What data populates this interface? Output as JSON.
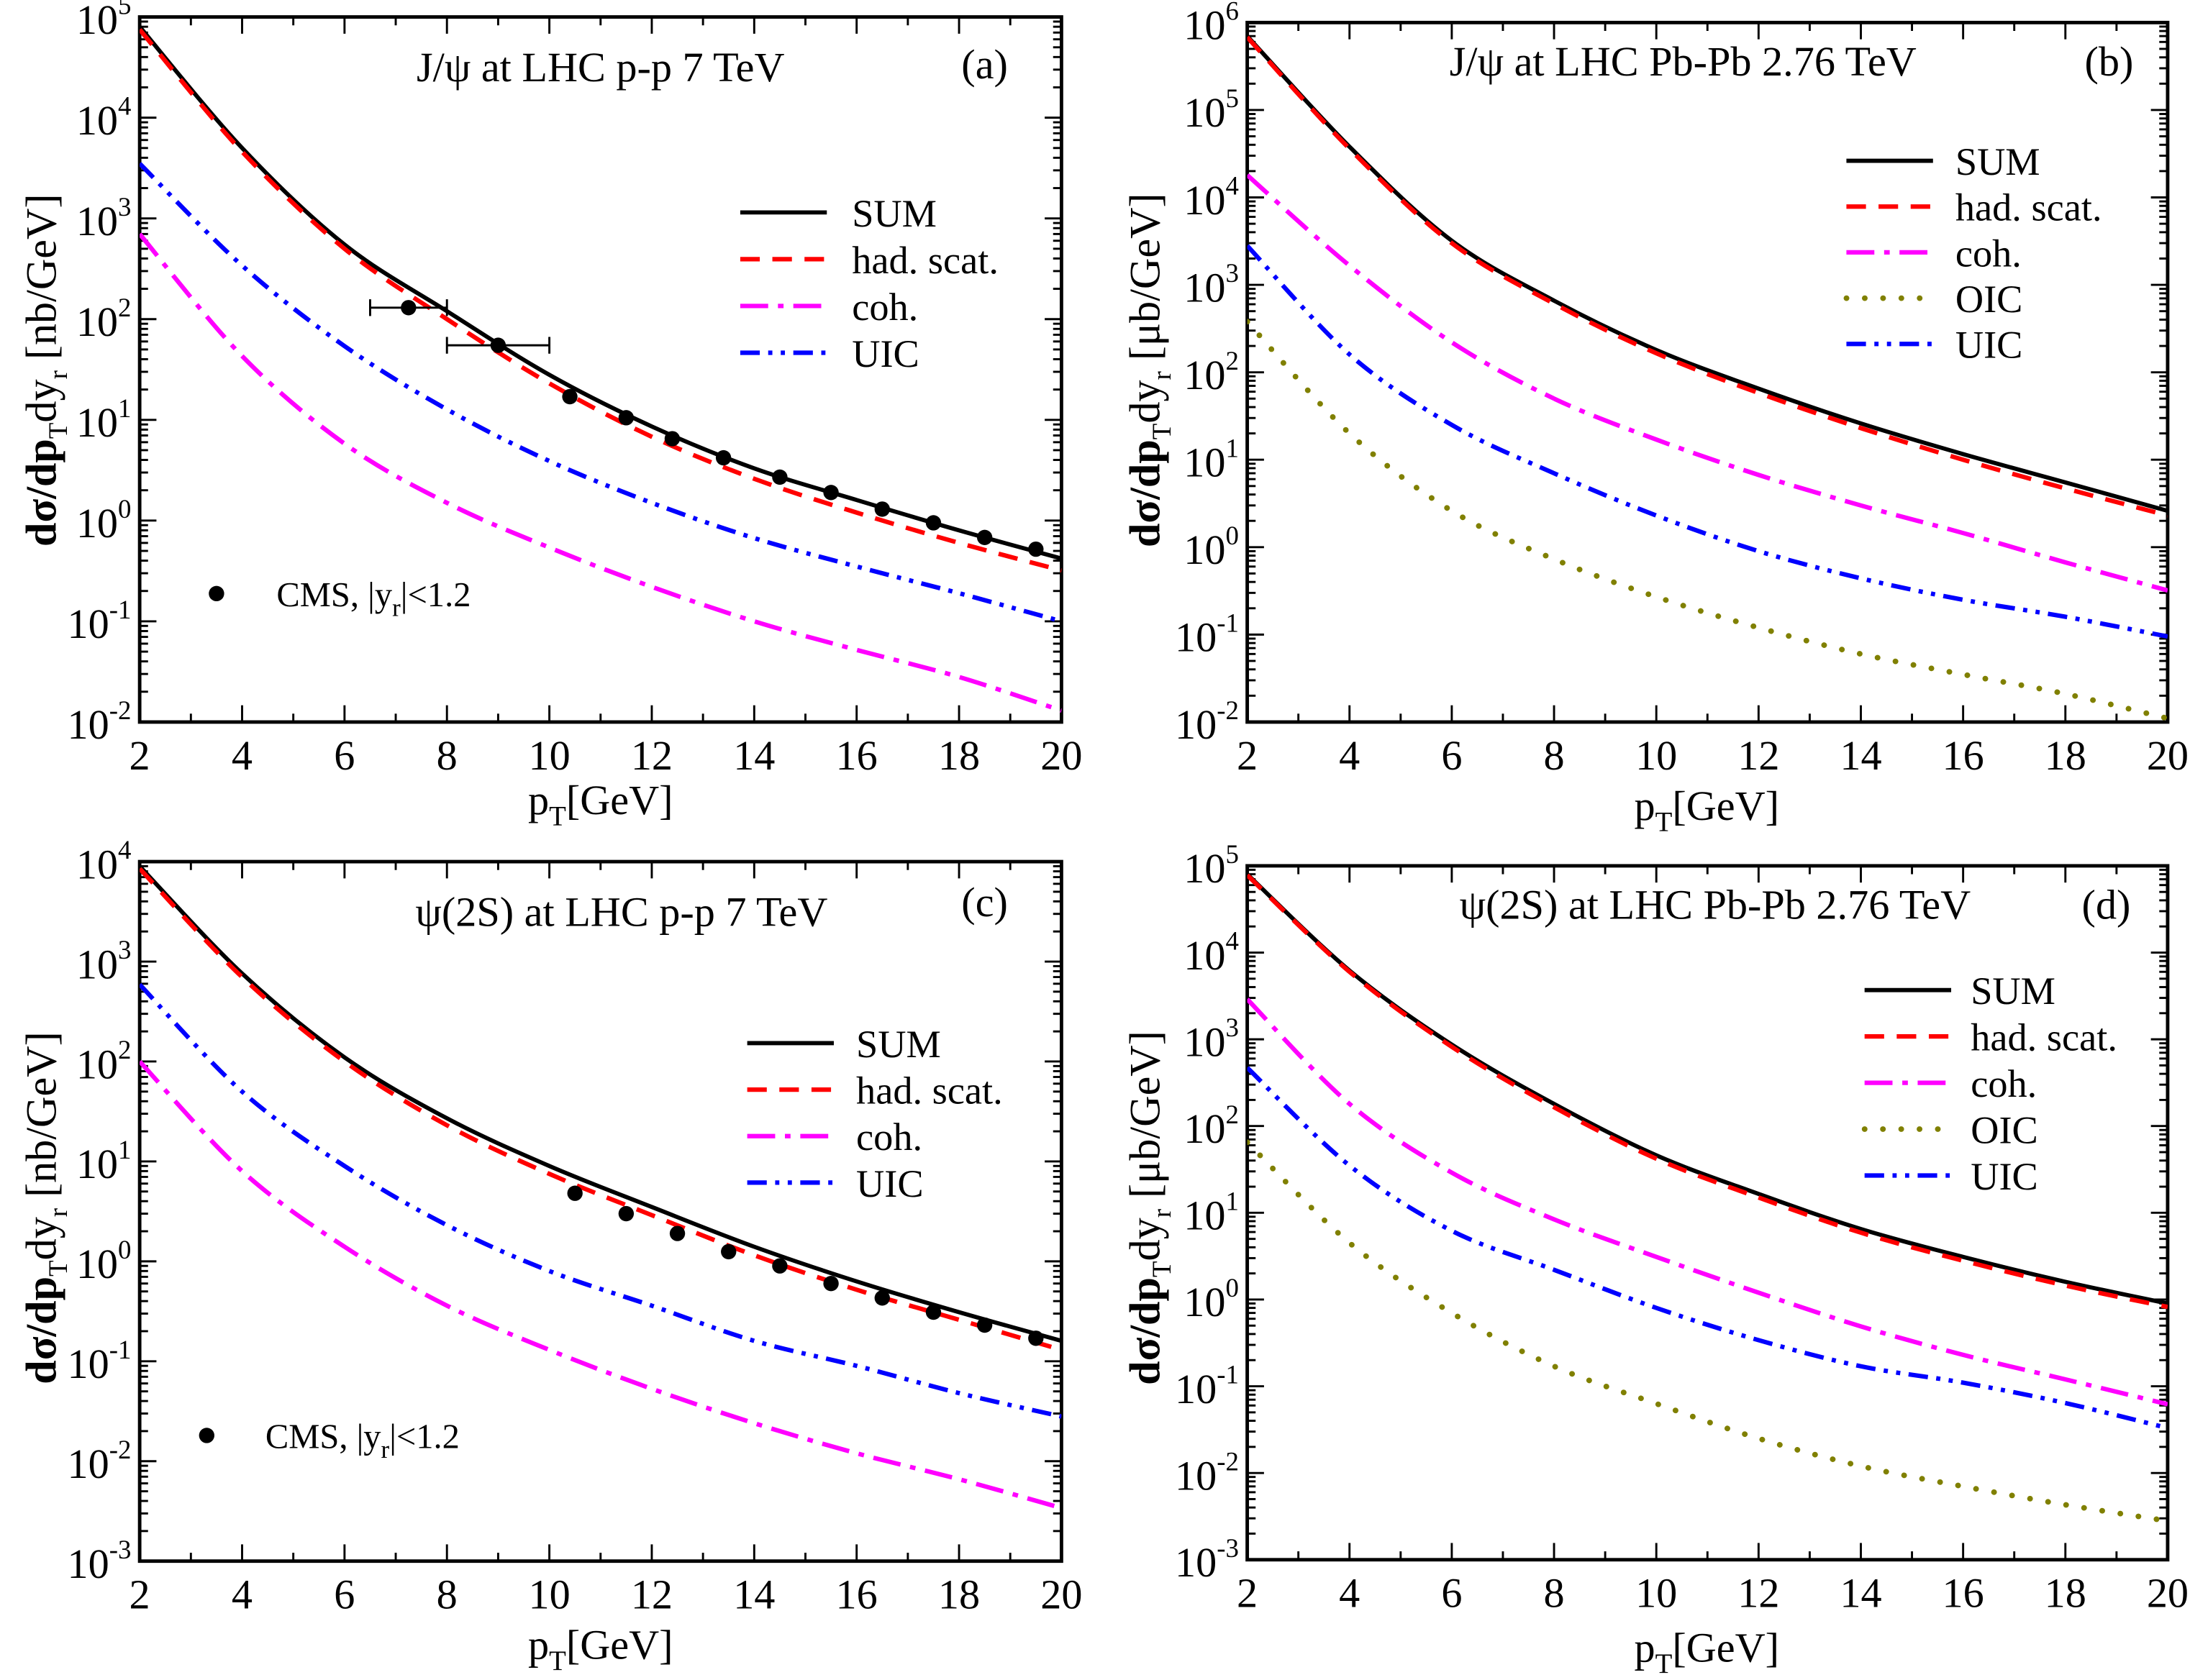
{
  "chart_data": [
    {
      "type": "line",
      "panel": "(a)",
      "title": "J/ψ at LHC p-p 7 TeV",
      "xlabel": {
        "main": "p",
        "sub": "T",
        "unit": "[GeV]"
      },
      "ylabel": {
        "pre": "dσ/dp",
        "sub1": "T",
        "mid": "dy",
        "sub2": "r",
        "unit": "[nb/GeV]"
      },
      "xlim": [
        2,
        20
      ],
      "ylim": [
        0.01,
        100000.0
      ],
      "yscale": "log",
      "xticks": [
        2,
        4,
        6,
        8,
        10,
        12,
        14,
        16,
        18,
        20
      ],
      "yticks_exp": [
        -2,
        -1,
        0,
        1,
        2,
        3,
        4,
        5
      ],
      "legend_placement": "right",
      "x": [
        2,
        4,
        6,
        8,
        10,
        12,
        14,
        16,
        18,
        20
      ],
      "series": [
        {
          "name": "SUM",
          "color": "#000000",
          "style": "solid",
          "values": [
            80000,
            5000,
            550,
            120,
            28,
            8.6,
            3.3,
            1.6,
            0.8,
            0.42
          ]
        },
        {
          "name": "had. scat.",
          "color": "#ff0000",
          "style": "dashed",
          "values": [
            75000,
            4600,
            500,
            100,
            23,
            6.8,
            2.6,
            1.2,
            0.6,
            0.32
          ]
        },
        {
          "name": "coh.",
          "color": "#ff00ff",
          "style": "dash-dot",
          "values": [
            700,
            43,
            5.8,
            1.5,
            0.54,
            0.22,
            0.1,
            0.052,
            0.028,
            0.013
          ]
        },
        {
          "name": "UIC",
          "color": "#0000ff",
          "style": "dash-dot-dot",
          "values": [
            3500,
            340,
            54,
            12.7,
            3.9,
            1.5,
            0.67,
            0.35,
            0.19,
            0.1
          ]
        }
      ],
      "data_points": {
        "name": "CMS, |yr|<1.2",
        "label": {
          "pre": "CMS,  |y",
          "sub": "r",
          "post": "|<1.2"
        },
        "points": [
          {
            "x": 7.25,
            "y": 130,
            "xerr": [
              6.5,
              8
            ]
          },
          {
            "x": 9.0,
            "y": 55,
            "xerr": [
              8,
              10
            ]
          },
          {
            "x": 10.4,
            "y": 17
          },
          {
            "x": 11.5,
            "y": 10.5
          },
          {
            "x": 12.4,
            "y": 6.5
          },
          {
            "x": 13.4,
            "y": 4.2
          },
          {
            "x": 14.5,
            "y": 2.7
          },
          {
            "x": 15.5,
            "y": 1.9
          },
          {
            "x": 16.5,
            "y": 1.3
          },
          {
            "x": 17.5,
            "y": 0.95
          },
          {
            "x": 18.5,
            "y": 0.68
          },
          {
            "x": 19.5,
            "y": 0.52
          }
        ]
      }
    },
    {
      "type": "line",
      "panel": "(b)",
      "title": "J/ψ at LHC Pb-Pb 2.76 TeV",
      "xlabel": {
        "main": "p",
        "sub": "T",
        "unit": "[GeV]"
      },
      "ylabel": {
        "pre": "dσ/dp",
        "sub1": "T",
        "mid": "dy",
        "sub2": "r",
        "unit": "[μb/GeV]"
      },
      "xlim": [
        2,
        20
      ],
      "ylim": [
        0.01,
        1000000.0
      ],
      "yscale": "log",
      "xticks": [
        2,
        4,
        6,
        8,
        10,
        12,
        14,
        16,
        18,
        20
      ],
      "yticks_exp": [
        -2,
        -1,
        0,
        1,
        2,
        3,
        4,
        5,
        6
      ],
      "legend_placement": "top-right",
      "x": [
        2,
        4,
        6,
        8,
        10,
        12,
        14,
        16,
        18,
        20
      ],
      "series": [
        {
          "name": "SUM",
          "color": "#000000",
          "style": "solid",
          "values": [
            700000,
            38000,
            3200,
            660,
            180,
            65,
            26,
            11.6,
            5.5,
            2.6
          ]
        },
        {
          "name": "had. scat.",
          "color": "#ff0000",
          "style": "dashed",
          "values": [
            680000,
            36000,
            3000,
            610,
            165,
            58,
            23,
            10,
            4.7,
            2.3
          ]
        },
        {
          "name": "coh.",
          "color": "#ff00ff",
          "style": "dash-dot",
          "values": [
            18000,
            1660,
            220,
            50,
            17,
            6.7,
            3.0,
            1.45,
            0.67,
            0.32
          ]
        },
        {
          "name": "OIC",
          "color": "#808000",
          "style": "dotted",
          "values": [
            380,
            20,
            2.6,
            0.73,
            0.27,
            0.12,
            0.06,
            0.035,
            0.021,
            0.011
          ]
        },
        {
          "name": "UIC",
          "color": "#0000ff",
          "style": "dash-dot-dot",
          "values": [
            2800,
            160,
            25,
            7,
            2.3,
            0.9,
            0.44,
            0.25,
            0.16,
            0.095
          ]
        }
      ]
    },
    {
      "type": "line",
      "panel": "(c)",
      "title": "ψ(2S) at LHC p-p 7 TeV",
      "xlabel": {
        "main": "p",
        "sub": "T",
        "unit": "[GeV]"
      },
      "ylabel": {
        "pre": "dσ/dp",
        "sub1": "T",
        "mid": "dy",
        "sub2": "r",
        "unit": "[nb/GeV]"
      },
      "xlim": [
        2,
        20
      ],
      "ylim": [
        0.001,
        10000.0
      ],
      "yscale": "log",
      "xticks": [
        2,
        4,
        6,
        8,
        10,
        12,
        14,
        16,
        18,
        20
      ],
      "yticks_exp": [
        -3,
        -2,
        -1,
        0,
        1,
        2,
        3,
        4
      ],
      "legend_placement": "right",
      "x": [
        2,
        4,
        6,
        8,
        10,
        12,
        14,
        16,
        18,
        20
      ],
      "series": [
        {
          "name": "SUM",
          "color": "#000000",
          "style": "solid",
          "values": [
            9000,
            760,
            110,
            27,
            9,
            3.5,
            1.4,
            0.63,
            0.31,
            0.16
          ]
        },
        {
          "name": "had. scat.",
          "color": "#ff0000",
          "style": "dashed",
          "values": [
            8500,
            700,
            100,
            23,
            7.5,
            2.9,
            1.15,
            0.52,
            0.26,
            0.13
          ]
        },
        {
          "name": "coh.",
          "color": "#ff00ff",
          "style": "dash-dot",
          "values": [
            100,
            8,
            1.4,
            0.36,
            0.13,
            0.053,
            0.024,
            0.012,
            0.0066,
            0.0034
          ]
        },
        {
          "name": "UIC",
          "color": "#0000ff",
          "style": "dash-dot-dot",
          "values": [
            590,
            50,
            9,
            2.3,
            0.8,
            0.36,
            0.16,
            0.09,
            0.048,
            0.028
          ]
        }
      ],
      "data_points": {
        "name": "CMS, |yr|<1.2",
        "label": {
          "pre": "CMS,  |y",
          "sub": "r",
          "post": "|<1.2"
        },
        "points": [
          {
            "x": 10.5,
            "y": 4.8
          },
          {
            "x": 11.5,
            "y": 3.0
          },
          {
            "x": 12.5,
            "y": 1.9
          },
          {
            "x": 13.5,
            "y": 1.25
          },
          {
            "x": 14.5,
            "y": 0.9
          },
          {
            "x": 15.5,
            "y": 0.6
          },
          {
            "x": 16.5,
            "y": 0.43
          },
          {
            "x": 17.5,
            "y": 0.31
          },
          {
            "x": 18.5,
            "y": 0.23
          },
          {
            "x": 19.5,
            "y": 0.17
          }
        ]
      }
    },
    {
      "type": "line",
      "panel": "(d)",
      "title": "ψ(2S) at LHC Pb-Pb 2.76 TeV",
      "xlabel": {
        "main": "p",
        "sub": "T",
        "unit": "[GeV]"
      },
      "ylabel": {
        "pre": "dσ/dp",
        "sub1": "T",
        "mid": "dy",
        "sub2": "r",
        "unit": "[μb/GeV]"
      },
      "xlim": [
        2,
        20
      ],
      "ylim": [
        0.001,
        100000.0
      ],
      "yscale": "log",
      "xticks": [
        2,
        4,
        6,
        8,
        10,
        12,
        14,
        16,
        18,
        20
      ],
      "yticks_exp": [
        -3,
        -2,
        -1,
        0,
        1,
        2,
        3,
        4,
        5
      ],
      "legend_placement": "top-right",
      "x": [
        2,
        4,
        6,
        8,
        10,
        12,
        14,
        16,
        18,
        20
      ],
      "series": [
        {
          "name": "SUM",
          "color": "#000000",
          "style": "solid",
          "values": [
            80000,
            6200,
            870,
            180,
            46,
            16.5,
            6.5,
            3.1,
            1.6,
            0.9
          ]
        },
        {
          "name": "had. scat.",
          "color": "#ff0000",
          "style": "dashed",
          "values": [
            78000,
            6000,
            820,
            165,
            42,
            15,
            5.9,
            2.8,
            1.45,
            0.82
          ]
        },
        {
          "name": "coh.",
          "color": "#ff00ff",
          "style": "dash-dot",
          "values": [
            2900,
            180,
            29,
            8.4,
            3.1,
            1.2,
            0.49,
            0.23,
            0.12,
            0.062
          ]
        },
        {
          "name": "OIC",
          "color": "#808000",
          "style": "dotted",
          "values": [
            65,
            4.5,
            0.7,
            0.17,
            0.063,
            0.025,
            0.012,
            0.007,
            0.0043,
            0.0028
          ]
        },
        {
          "name": "UIC",
          "color": "#0000ff",
          "style": "dash-dot-dot",
          "values": [
            470,
            35,
            6.2,
            2.2,
            0.8,
            0.34,
            0.17,
            0.11,
            0.064,
            0.033
          ]
        }
      ]
    }
  ]
}
